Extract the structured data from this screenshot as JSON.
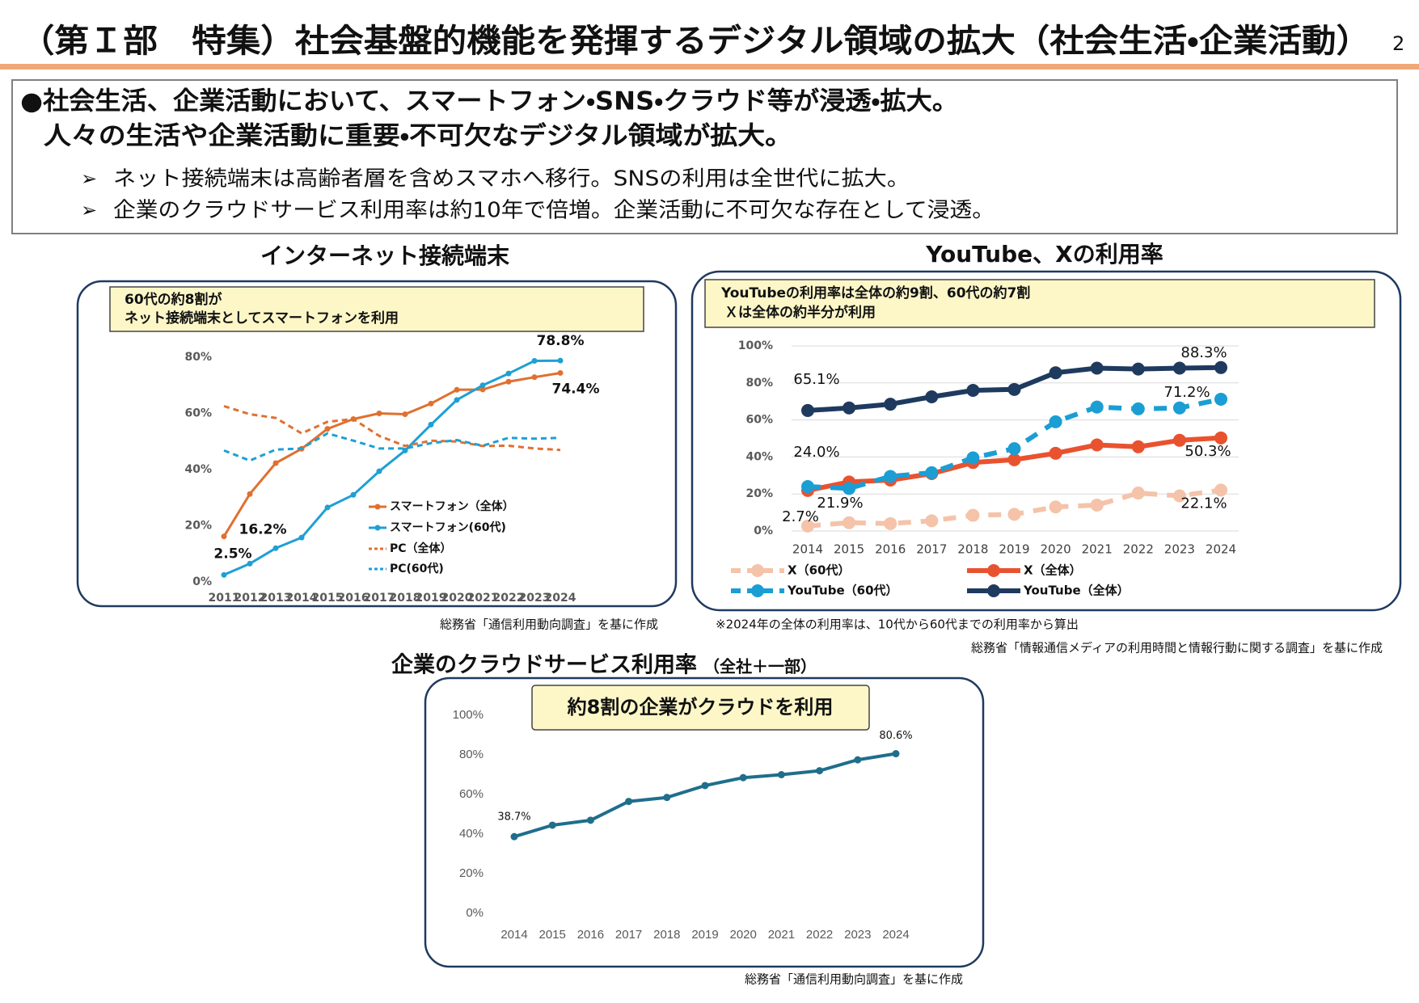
{
  "header": {
    "title": "（第Ｉ部　特集）社会基盤的機能を発揮するデジタル領域の拡大（社会生活・企業活動）",
    "page_number": "2"
  },
  "summary": {
    "headline": [
      "●社会生活、企業活動において、スマートフォン・SNS・クラウド等が浸透・拡大。",
      "人々の生活や企業活動に重要・不可欠なデジタル領域が拡大。"
    ],
    "bullets": [
      "ネット接続端末は高齢者層を含めスマホへ移行。SNSの利用は全世代に拡大。",
      "企業のクラウドサービス利用率は約10年で倍増。企業活動に不可欠な存在として浸透。"
    ]
  },
  "chart_data": [
    {
      "type": "line",
      "title": "インターネット接続端末",
      "callout": [
        "60代の約8割が",
        "ネット接続端末としてスマートフォンを利用"
      ],
      "categories": [
        "2011",
        "2012",
        "2013",
        "2014",
        "2015",
        "2016",
        "2017",
        "2018",
        "2019",
        "2020",
        "2021",
        "2022",
        "2023",
        "2024"
      ],
      "series": [
        {
          "name": "スマートフォン（全体）",
          "color": "#e07030",
          "dash": false,
          "values": [
            16.2,
            31.3,
            42.3,
            47.4,
            54.5,
            58,
            60,
            59.7,
            63.5,
            68.4,
            68.5,
            71.3,
            72.9,
            74.4
          ],
          "value_labels": [
            "16.2%",
            null,
            null,
            null,
            null,
            null,
            null,
            null,
            null,
            null,
            null,
            null,
            null,
            "74.4%"
          ]
        },
        {
          "name": "スマートフォン(60代)",
          "color": "#1ea0d4",
          "dash": false,
          "values": [
            2.5,
            6.5,
            12,
            15.8,
            26.5,
            31,
            39.4,
            46.8,
            56,
            64.8,
            70,
            74.2,
            78.7,
            78.8
          ],
          "value_labels": [
            "2.5%",
            null,
            null,
            null,
            null,
            null,
            null,
            null,
            null,
            null,
            null,
            null,
            null,
            "78.8%"
          ]
        },
        {
          "name": "PC（全体）",
          "color": "#e07030",
          "dash": true,
          "values": [
            62.6,
            59.7,
            58.4,
            52.9,
            57,
            58,
            52,
            48.4,
            50.3,
            50,
            48.4,
            48.5,
            47.5,
            47
          ]
        },
        {
          "name": "PC(60代)",
          "color": "#1ea0d4",
          "dash": true,
          "values": [
            46.8,
            43.2,
            47.1,
            47.5,
            52.9,
            50.3,
            47.5,
            47.5,
            49.4,
            50.5,
            48.5,
            51.3,
            51,
            51.3
          ]
        }
      ],
      "ylim": [
        0,
        80
      ],
      "yticks": [
        {
          "value": 0,
          "label": "0%"
        },
        {
          "value": 20,
          "label": "20%"
        },
        {
          "value": 40,
          "label": "40%"
        },
        {
          "value": 60,
          "label": "60%"
        },
        {
          "value": 80,
          "label": "80%"
        }
      ],
      "grid": false,
      "source": "総務省「通信利用動向調査」を基に作成"
    },
    {
      "type": "line",
      "title": "YouTube、Xの利用率",
      "callout": [
        "YouTubeの利用率は全体の約9割、60代の約7割",
        "Ｘは全体の約半分が利用"
      ],
      "categories": [
        "2014",
        "2015",
        "2016",
        "2017",
        "2018",
        "2019",
        "2020",
        "2021",
        "2022",
        "2023",
        "2024"
      ],
      "series": [
        {
          "name": "X（60代）",
          "color": "#f4c3a9",
          "dash": true,
          "values": [
            2.7,
            4.5,
            4,
            5.5,
            8.5,
            9,
            13,
            14,
            20.5,
            19,
            22.1
          ],
          "value_labels": [
            "2.7%",
            null,
            null,
            null,
            null,
            null,
            null,
            null,
            null,
            null,
            "22.1%"
          ]
        },
        {
          "name": "X（全体）",
          "color": "#e9522f",
          "dash": false,
          "values": [
            21.9,
            26.5,
            27.5,
            31,
            37,
            38.5,
            42,
            46.5,
            45.5,
            49,
            50.3
          ],
          "value_labels": [
            "21.9%",
            null,
            null,
            null,
            null,
            null,
            null,
            null,
            null,
            null,
            "50.3%"
          ]
        },
        {
          "name": "YouTube（60代）",
          "color": "#1a9ed4",
          "dash": true,
          "values": [
            24.0,
            23,
            29.5,
            31.5,
            39.5,
            44.5,
            59,
            67,
            66,
            66.5,
            71.2
          ],
          "value_labels": [
            "24.0%",
            null,
            null,
            null,
            null,
            null,
            null,
            null,
            null,
            null,
            "71.2%"
          ]
        },
        {
          "name": "YouTube（全体）",
          "color": "#1f3a5f",
          "dash": false,
          "values": [
            65.1,
            66.5,
            68.5,
            72.5,
            76,
            76.5,
            85.5,
            88,
            87.5,
            88,
            88.3
          ],
          "value_labels": [
            "65.1%",
            null,
            null,
            null,
            null,
            null,
            null,
            null,
            null,
            null,
            "88.3%"
          ]
        }
      ],
      "ylim": [
        0,
        100
      ],
      "yticks": [
        {
          "value": 0,
          "label": "0%"
        },
        {
          "value": 20,
          "label": "20%"
        },
        {
          "value": 40,
          "label": "40%"
        },
        {
          "value": 60,
          "label": "60%"
        },
        {
          "value": 80,
          "label": "80%"
        },
        {
          "value": 100,
          "label": "100%"
        }
      ],
      "grid": true,
      "note": "※2024年の全体の利用率は、10代から60代までの利用率から算出",
      "source": "総務省「情報通信メディアの利用時間と情報行動に関する調査」を基に作成"
    },
    {
      "type": "line",
      "title": "企業のクラウドサービス利用率",
      "subtitle": "（全社＋一部）",
      "callout": [
        "約8割の企業がクラウドを利用"
      ],
      "categories": [
        "2014",
        "2015",
        "2016",
        "2017",
        "2018",
        "2019",
        "2020",
        "2021",
        "2022",
        "2023",
        "2024"
      ],
      "values": [
        38.7,
        44.5,
        47,
        56.5,
        58.5,
        64.5,
        68.5,
        70,
        72,
        77.5,
        80.6
      ],
      "value_labels": [
        "38.7%",
        null,
        null,
        null,
        null,
        null,
        null,
        null,
        null,
        null,
        "80.6%"
      ],
      "color": "#1f6e8c",
      "ylim": [
        0,
        100
      ],
      "yticks": [
        {
          "value": 0,
          "label": "0%"
        },
        {
          "value": 20,
          "label": "20%"
        },
        {
          "value": 40,
          "label": "40%"
        },
        {
          "value": 60,
          "label": "60%"
        },
        {
          "value": 80,
          "label": "80%"
        },
        {
          "value": 100,
          "label": "100%"
        }
      ],
      "grid": false,
      "source": "総務省「通信利用動向調査」を基に作成"
    }
  ]
}
